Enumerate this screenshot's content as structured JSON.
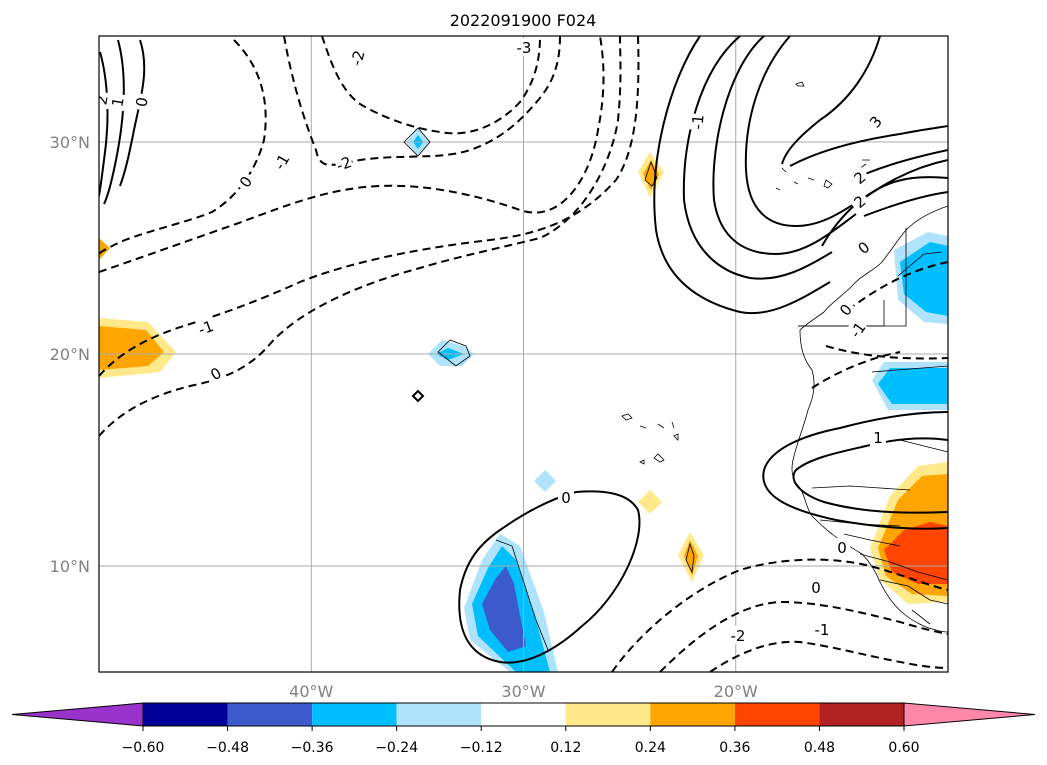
{
  "chart_data": {
    "type": "contour map",
    "title": "2022091900 F024",
    "map_extent": {
      "lon_min": -50,
      "lon_max": -10,
      "lat_min": 5,
      "lat_max": 35
    },
    "gridlines": true,
    "lon_ticks": [
      {
        "value": -40,
        "label": "40°W"
      },
      {
        "value": -30,
        "label": "30°W"
      },
      {
        "value": -20,
        "label": "20°W"
      }
    ],
    "lat_ticks": [
      {
        "value": 30,
        "label": "30°N"
      },
      {
        "value": 20,
        "label": "20°N"
      },
      {
        "value": 10,
        "label": "10°N"
      }
    ],
    "contour_labels": [
      "-3",
      "-2",
      "-1",
      "0",
      "1",
      "2",
      "3"
    ],
    "colorbar": {
      "extend": "both",
      "boundaries": [
        -0.72,
        -0.6,
        -0.48,
        -0.36,
        -0.24,
        -0.12,
        0.12,
        0.24,
        0.36,
        0.48,
        0.6,
        0.72
      ],
      "tick_labels": [
        "−0.60",
        "−0.48",
        "−0.36",
        "−0.24",
        "−0.12",
        "0.12",
        "0.24",
        "0.36",
        "0.48",
        "0.60"
      ],
      "colors": [
        "#9933cc",
        "#000099",
        "#3b5bcc",
        "#00bfff",
        "#aee3fb",
        "#ffffff",
        "#ffe98a",
        "#ffa500",
        "#ff4500",
        "#b22222",
        "#ff88aa"
      ]
    },
    "filled_regions": [
      {
        "name": "ridge-west-edge",
        "level": 0.24,
        "color": "#ffa500",
        "lon": -49.5,
        "lat": 20.4
      },
      {
        "name": "spot-west-edge",
        "level": 0.12,
        "color": "#ffe98a",
        "lon": -49.8,
        "lat": 25.0
      },
      {
        "name": "spot-33N",
        "level": -0.12,
        "color": "#aee3fb",
        "lon": -35,
        "lat": 30
      },
      {
        "name": "spot-20N",
        "level": -0.24,
        "color": "#00bfff",
        "lon": -34,
        "lat": 20
      },
      {
        "name": "spot-28N-24W",
        "level": 0.24,
        "color": "#ffa500",
        "lon": -24,
        "lat": 28.6
      },
      {
        "name": "spot-14N",
        "level": -0.12,
        "color": "#aee3fb",
        "lon": -29.6,
        "lat": 14
      },
      {
        "name": "spot-13N",
        "level": 0.12,
        "color": "#ffe98a",
        "lon": -24,
        "lat": 13
      },
      {
        "name": "spot-10N-22W",
        "level": 0.24,
        "color": "#ffa500",
        "lon": -22,
        "lat": 10.4
      },
      {
        "name": "trough-9N-31W",
        "level": -0.36,
        "color": "#3b5bcc",
        "lon": -31,
        "lat": 8
      },
      {
        "name": "coast-23N",
        "level": -0.24,
        "color": "#00bfff",
        "lon": -11.5,
        "lat": 23
      },
      {
        "name": "coast-18N",
        "level": -0.24,
        "color": "#00bfff",
        "lon": -12,
        "lat": 18
      },
      {
        "name": "coast-11N",
        "level": 0.36,
        "color": "#ff4500",
        "lon": -11.5,
        "lat": 10.5
      }
    ]
  }
}
